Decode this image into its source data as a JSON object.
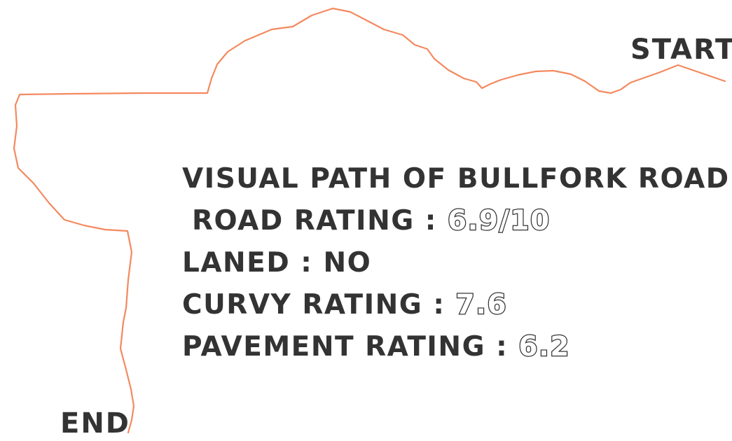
{
  "map": {
    "start_label": "START",
    "end_label": "END",
    "route_color": "#f4895f",
    "text_color": "#333333"
  },
  "info": {
    "title": "VISUAL PATH OF BULLFORK ROAD",
    "road_rating_label": "ROAD RATING : ",
    "road_rating_value": "6.9/10",
    "laned_label": "LANED : NO",
    "curvy_rating_label": "CURVY RATING : ",
    "curvy_rating_value": "7.6",
    "pavement_rating_label": "PAVEMENT RATING : ",
    "pavement_rating_value": "6.2"
  }
}
